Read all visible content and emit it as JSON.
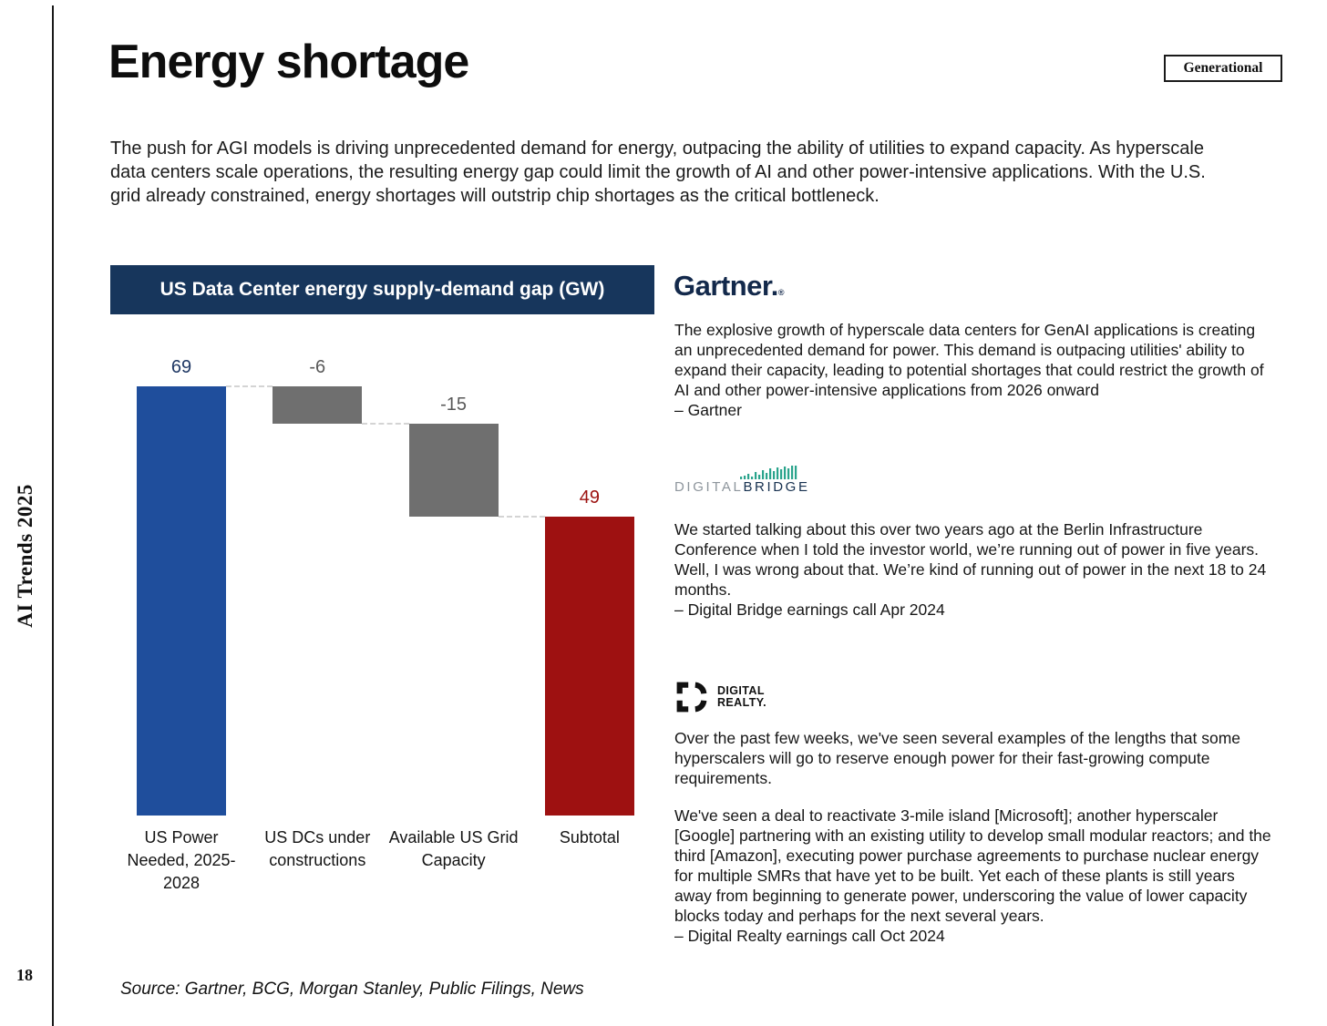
{
  "page": {
    "title": "Energy shortage",
    "badge": "Generational",
    "sidebar_title": "AI Trends 2025",
    "page_number": "18",
    "intro": "The push for AGI models is driving unprecedented demand for energy, outpacing the ability of utilities to expand capacity. As hyperscale data centers scale operations, the resulting energy gap could limit the growth of AI and other power-intensive applications. With the U.S. grid already constrained, energy shortages will outstrip chip shortages as the critical bottleneck.",
    "source": "Source: Gartner, BCG, Morgan Stanley, Public Filings, News"
  },
  "chart_data": {
    "type": "waterfall-bar",
    "title": "US Data Center energy supply-demand gap (GW)",
    "categories": [
      "US Power Needed, 2025-2028",
      "US DCs under constructions",
      "Available US Grid Capacity",
      "Subtotal"
    ],
    "values": [
      69,
      -6,
      -15,
      49
    ],
    "value_labels": [
      "69",
      "-6",
      "-15",
      "49"
    ],
    "roles": [
      "start",
      "decrease",
      "decrease",
      "total"
    ],
    "ylim": [
      0,
      69
    ],
    "grid": false,
    "colors": {
      "start": "#1f4e9c",
      "decrease": "#6f6f6f",
      "total": "#9e1111",
      "label_start": "#1f3864",
      "label_decrease": "#595959",
      "label_total": "#9c1210",
      "header_bg": "#17365c",
      "header_text": "#ffffff",
      "connector": "#d4d4d4"
    }
  },
  "quotes": {
    "gartner": {
      "logo": "Gartner.",
      "logo_reg": "®",
      "text": "The explosive growth of hyperscale data centers for GenAI applications is creating an unprecedented demand for power. This demand is outpacing utilities' ability to expand their capacity, leading to potential shortages that could restrict the growth of AI and other power-intensive applications from 2026 onward",
      "attribution": "– Gartner"
    },
    "digitalbridge": {
      "logo_part1": "DIGITAL",
      "logo_part2": "BRIDGE",
      "text": "We started talking about this over two years ago at the Berlin Infrastructure Conference when I told the investor world, we’re running out of power in five years. Well, I was wrong about that. We’re kind of running out of power in the next 18 to 24 months.",
      "attribution": "– Digital Bridge earnings call Apr 2024"
    },
    "digitalrealty": {
      "logo_line1": "DIGITAL",
      "logo_line2": "REALTY.",
      "text1": "Over the past few weeks, we've seen several examples of the lengths that some hyperscalers will go to reserve enough power for their fast-growing compute requirements.",
      "text2": "We've seen a deal to reactivate 3-mile island [Microsoft]; another hyperscaler [Google] partnering with an existing utility to develop small modular reactors; and the third [Amazon], executing power purchase agreements to purchase nuclear energy for multiple SMRs that have yet to be built. Yet each of these plants is still years away from beginning to generate power, underscoring the value of lower capacity blocks today and perhaps for the next several years.",
      "attribution": "– Digital Realty earnings call Oct 2024"
    }
  }
}
